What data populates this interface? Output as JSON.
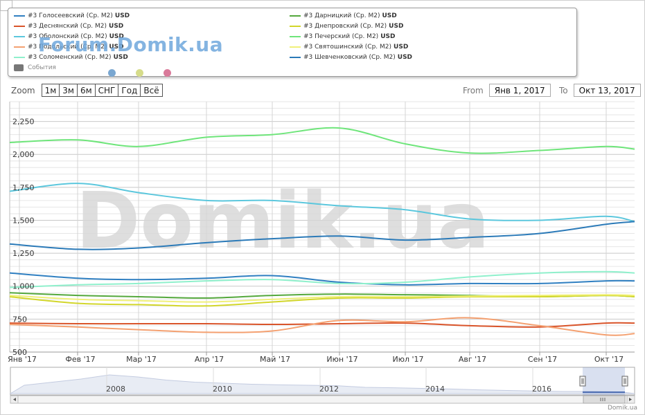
{
  "legend": {
    "items": [
      {
        "label": "#3 Голосеевский (Ср. M2)",
        "unit": "USD",
        "color": "#2f7fc1"
      },
      {
        "label": "#3 Деснянский (Ср. M2)",
        "unit": "USD",
        "color": "#d9542a"
      },
      {
        "label": "#3 Оболонский (Ср. M2)",
        "unit": "USD",
        "color": "#5bc7dd"
      },
      {
        "label": "#3 Подольский (Ср. M2)",
        "unit": "USD",
        "color": "#f4a070"
      },
      {
        "label": "#3 Соломенский (Ср. M2)",
        "unit": "USD",
        "color": "#8ff0cc"
      },
      {
        "label": "#3 Дарницкий (Ср. M2)",
        "unit": "USD",
        "color": "#54a83c"
      },
      {
        "label": "#3 Днепровский (Ср. M2)",
        "unit": "USD",
        "color": "#d2d62a"
      },
      {
        "label": "#3 Печерский (Ср. M2)",
        "unit": "USD",
        "color": "#6ee57a"
      },
      {
        "label": "#3 Святошинский (Ср. M2)",
        "unit": "USD",
        "color": "#f0f07a"
      },
      {
        "label": "#3 Шевченковский (Ср. M2)",
        "unit": "USD",
        "color": "#2b7ab8"
      }
    ],
    "events_label": "События",
    "event_dot_colors": [
      "#7aa7d1",
      "#d6dc8a",
      "#d97a9a"
    ]
  },
  "watermark": {
    "top": "Forum.Domik.ua",
    "center": "Domik.ua"
  },
  "zoom": {
    "label": "Zoom",
    "buttons": [
      "1м",
      "3м",
      "6м",
      "СНГ",
      "Год",
      "Всё"
    ]
  },
  "range": {
    "from_label": "From",
    "from_value": "Янв 1, 2017",
    "to_label": "To",
    "to_value": "Окт 13, 2017"
  },
  "credit": "Domik.ua",
  "chart_data": {
    "type": "line",
    "xlabel": "",
    "ylabel": "",
    "x": [
      "Янв '17",
      "Фев '17",
      "Мар '17",
      "Апр '17",
      "Май '17",
      "Июн '17",
      "Июл '17",
      "Авг '17",
      "Сен '17",
      "Окт '17",
      "Окт 13 '17"
    ],
    "xticks": [
      "Янв '17",
      "Фев '17",
      "Мар '17",
      "Апр '17",
      "Май '17",
      "Июн '17",
      "Июл '17",
      "Авг '17",
      "Сен '17",
      "Окт '17"
    ],
    "yticks": [
      500,
      750,
      1000,
      1250,
      1500,
      1750,
      2000,
      2250
    ],
    "ylim": [
      500,
      2400
    ],
    "grid": true,
    "legend_position": "top",
    "series": [
      {
        "name": "#3 Печерский (Ср. M2)",
        "color": "#6ee57a",
        "values": [
          2090,
          2110,
          2060,
          2130,
          2150,
          2200,
          2080,
          2010,
          2030,
          2060,
          2040
        ]
      },
      {
        "name": "#3 Оболонский (Ср. M2)",
        "color": "#5bc7dd",
        "values": [
          1720,
          1780,
          1710,
          1650,
          1650,
          1610,
          1580,
          1510,
          1500,
          1530,
          1490
        ]
      },
      {
        "name": "#3 Шевченковский (Ср. M2)",
        "color": "#2b7ab8",
        "values": [
          1320,
          1280,
          1290,
          1330,
          1360,
          1380,
          1350,
          1370,
          1400,
          1470,
          1490
        ]
      },
      {
        "name": "#3 Голосеевский (Ср. M2)",
        "color": "#2f7fc1",
        "values": [
          1100,
          1060,
          1050,
          1060,
          1080,
          1030,
          1010,
          1020,
          1020,
          1040,
          1040
        ]
      },
      {
        "name": "#3 Соломенский (Ср. M2)",
        "color": "#8ff0cc",
        "values": [
          990,
          1010,
          1020,
          1040,
          1050,
          1020,
          1030,
          1070,
          1100,
          1110,
          1100
        ]
      },
      {
        "name": "#3 Дарницкий (Ср. M2)",
        "color": "#54a83c",
        "values": [
          950,
          930,
          920,
          910,
          930,
          940,
          935,
          930,
          920,
          930,
          920
        ]
      },
      {
        "name": "#3 Днепровский (Ср. M2)",
        "color": "#d2d62a",
        "values": [
          920,
          870,
          860,
          850,
          880,
          910,
          910,
          920,
          920,
          930,
          920
        ]
      },
      {
        "name": "#3 Святошинский (Ср. M2)",
        "color": "#f0f07a",
        "values": [
          930,
          900,
          890,
          880,
          900,
          920,
          920,
          925,
          930,
          935,
          930
        ]
      },
      {
        "name": "#3 Деснянский (Ср. M2)",
        "color": "#d9542a",
        "values": [
          720,
          715,
          715,
          715,
          710,
          715,
          720,
          700,
          690,
          720,
          720
        ]
      },
      {
        "name": "#3 Подольский (Ср. M2)",
        "color": "#f4a070",
        "values": [
          710,
          690,
          670,
          650,
          660,
          740,
          730,
          760,
          700,
          630,
          640
        ]
      }
    ]
  },
  "navigator": {
    "years": [
      "2008",
      "2010",
      "2012",
      "2014",
      "2016"
    ]
  }
}
